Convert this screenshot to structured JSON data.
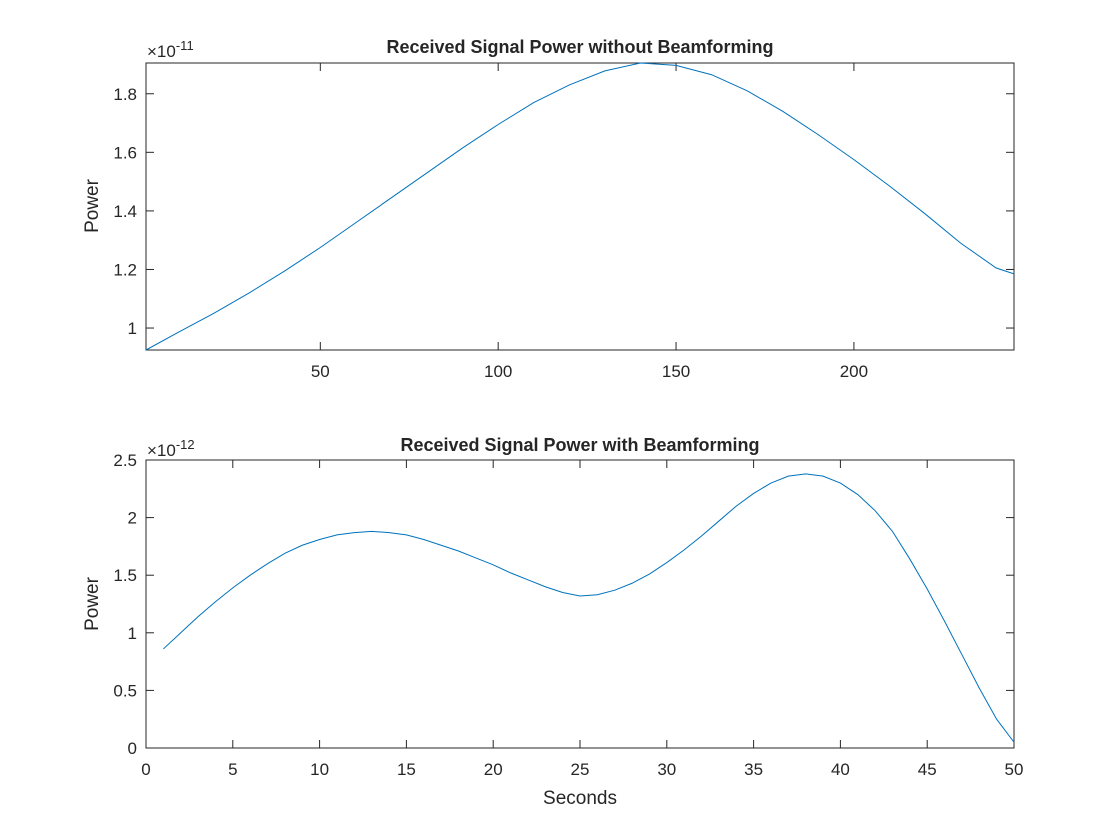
{
  "chart_data": [
    {
      "type": "line",
      "title": "Received Signal Power without Beamforming",
      "xlabel": "",
      "ylabel": "Power",
      "exponent_base": "×10",
      "exponent_power": "-11",
      "xlim": [
        1,
        245
      ],
      "ylim": [
        0.925,
        1.905
      ],
      "xticks": [
        50,
        100,
        150,
        200
      ],
      "yticks": [
        1,
        1.2,
        1.4,
        1.6,
        1.8
      ],
      "ytick_labels": [
        "1",
        "1.2",
        "1.4",
        "1.6",
        "1.8"
      ],
      "grid": false,
      "series": [
        {
          "color": "#0072BD",
          "x": [
            1,
            10,
            20,
            30,
            40,
            50,
            60,
            70,
            80,
            90,
            100,
            110,
            120,
            130,
            140,
            150,
            160,
            170,
            180,
            190,
            200,
            210,
            220,
            230,
            240,
            245
          ],
          "y": [
            0.925,
            0.985,
            1.05,
            1.12,
            1.195,
            1.275,
            1.36,
            1.445,
            1.53,
            1.615,
            1.695,
            1.77,
            1.83,
            1.878,
            1.905,
            1.897,
            1.865,
            1.81,
            1.74,
            1.66,
            1.575,
            1.485,
            1.39,
            1.29,
            1.205,
            1.185
          ]
        }
      ]
    },
    {
      "type": "line",
      "title": "Received Signal Power with Beamforming",
      "xlabel": "Seconds",
      "ylabel": "Power",
      "exponent_base": "×10",
      "exponent_power": "-12",
      "xlim": [
        0,
        50
      ],
      "ylim": [
        0,
        2.5
      ],
      "xticks": [
        0,
        5,
        10,
        15,
        20,
        25,
        30,
        35,
        40,
        45,
        50
      ],
      "yticks": [
        0,
        0.5,
        1,
        1.5,
        2,
        2.5
      ],
      "ytick_labels": [
        "0",
        "0.5",
        "1",
        "1.5",
        "2",
        "2.5"
      ],
      "grid": false,
      "series": [
        {
          "color": "#0072BD",
          "x": [
            1,
            2,
            3,
            4,
            5,
            6,
            7,
            8,
            9,
            10,
            11,
            12,
            13,
            14,
            15,
            16,
            17,
            18,
            19,
            20,
            21,
            22,
            23,
            24,
            25,
            26,
            27,
            28,
            29,
            30,
            31,
            32,
            33,
            34,
            35,
            36,
            37,
            38,
            39,
            40,
            41,
            42,
            43,
            44,
            45,
            46,
            47,
            48,
            49,
            50
          ],
          "y": [
            0.86,
            1.0,
            1.14,
            1.27,
            1.39,
            1.5,
            1.6,
            1.69,
            1.76,
            1.81,
            1.85,
            1.87,
            1.88,
            1.87,
            1.85,
            1.81,
            1.76,
            1.71,
            1.65,
            1.59,
            1.52,
            1.46,
            1.4,
            1.35,
            1.32,
            1.33,
            1.37,
            1.43,
            1.51,
            1.61,
            1.72,
            1.84,
            1.97,
            2.1,
            2.21,
            2.3,
            2.36,
            2.38,
            2.36,
            2.3,
            2.2,
            2.06,
            1.88,
            1.64,
            1.38,
            1.1,
            0.81,
            0.52,
            0.25,
            0.05
          ]
        }
      ]
    }
  ]
}
